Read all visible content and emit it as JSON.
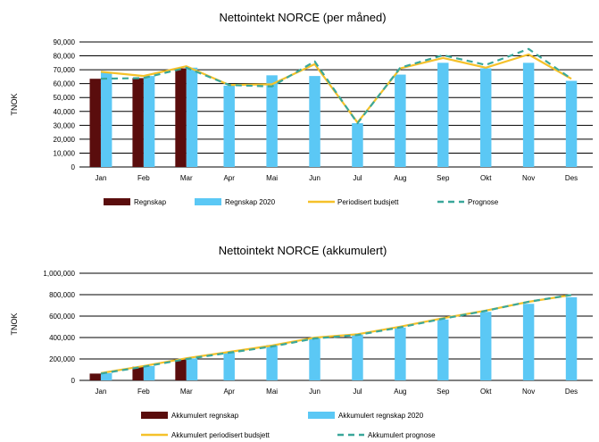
{
  "colors": {
    "regnskap": "#5a0d0d",
    "regnskap2020": "#5bc8f5",
    "budsjett": "#f5c12a",
    "prognose": "#3aa79a",
    "grid": "#000000"
  },
  "chart_data": [
    {
      "type": "bar",
      "title": "Nettointekt NORCE (per måned)",
      "ylabel": "TNOK",
      "xlabel": "",
      "ylim": [
        0,
        90000
      ],
      "yticks": [
        "0",
        "10,000",
        "20,000",
        "30,000",
        "40,000",
        "50,000",
        "60,000",
        "70,000",
        "80,000",
        "90,000"
      ],
      "categories": [
        "Jan",
        "Feb",
        "Mar",
        "Apr",
        "Mai",
        "Jun",
        "Jul",
        "Aug",
        "Sep",
        "Okt",
        "Nov",
        "Des"
      ],
      "grid": true,
      "legend_position": "bottom",
      "series": [
        {
          "name": "Regnskap",
          "kind": "bar",
          "values": [
            63500,
            64000,
            71000,
            null,
            null,
            null,
            null,
            null,
            null,
            null,
            null,
            null
          ]
        },
        {
          "name": "Regnskap 2020",
          "kind": "bar",
          "values": [
            68500,
            65500,
            71500,
            58500,
            66000,
            65500,
            31500,
            66500,
            75000,
            71000,
            75000,
            62000
          ]
        },
        {
          "name": "Periodisert budsjett",
          "kind": "line",
          "values": [
            68500,
            65500,
            72500,
            59000,
            59500,
            74000,
            32000,
            71000,
            78500,
            71500,
            81000,
            63500
          ]
        },
        {
          "name": "Prognose",
          "kind": "dashed-line",
          "values": [
            63500,
            64000,
            71500,
            59000,
            58000,
            76000,
            31500,
            71500,
            80500,
            73500,
            85000,
            63500
          ]
        }
      ]
    },
    {
      "type": "bar",
      "title": "Nettointekt NORCE (akkumulert)",
      "ylabel": "TNOK",
      "xlabel": "",
      "ylim": [
        0,
        1000000
      ],
      "yticks": [
        "0",
        "200,000",
        "400,000",
        "600,000",
        "800,000",
        "1,000,000"
      ],
      "categories": [
        "Jan",
        "Feb",
        "Mar",
        "Apr",
        "Mai",
        "Jun",
        "Jul",
        "Aug",
        "Sep",
        "Okt",
        "Nov",
        "Des"
      ],
      "grid": true,
      "legend_position": "bottom",
      "series": [
        {
          "name": "Akkumulert regnskap",
          "kind": "bar",
          "values": [
            63500,
            127500,
            198500,
            null,
            null,
            null,
            null,
            null,
            null,
            null,
            null,
            null
          ]
        },
        {
          "name": "Akkumulert regnskap 2020",
          "kind": "bar",
          "values": [
            68500,
            134000,
            205500,
            264000,
            330000,
            395500,
            427000,
            493500,
            568500,
            639500,
            714500,
            776500
          ]
        },
        {
          "name": "Akkumulert periodisert budsjett",
          "kind": "line",
          "values": [
            68500,
            134000,
            206500,
            265500,
            325000,
            399000,
            431000,
            502000,
            580500,
            652000,
            733000,
            796500
          ]
        },
        {
          "name": "Akkumulert prognose",
          "kind": "dashed-line",
          "values": [
            63500,
            127500,
            199000,
            258000,
            316000,
            392000,
            423500,
            495000,
            575500,
            649000,
            734000,
            797500
          ]
        }
      ]
    }
  ]
}
